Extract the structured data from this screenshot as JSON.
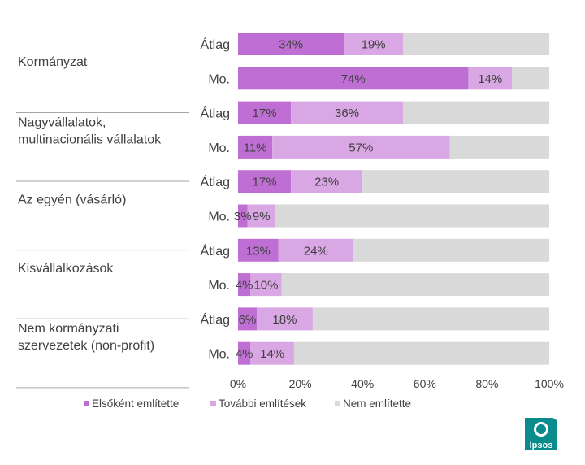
{
  "chart_data": {
    "type": "bar",
    "orientation": "horizontal",
    "stacked": true,
    "groups": [
      {
        "label": "Kormányzat",
        "rows": [
          "Átlag",
          "Mo."
        ]
      },
      {
        "label": "Nagyvállalatok, multinacionális vállalatok",
        "rows": [
          "Átlag",
          "Mo."
        ]
      },
      {
        "label": "Az egyén (vásárló)",
        "rows": [
          "Átlag",
          "Mo."
        ]
      },
      {
        "label": "Kisvállalkozások",
        "rows": [
          "Átlag",
          "Mo."
        ]
      },
      {
        "label": "Nem kormányzati szervezetek (non-profit)",
        "rows": [
          "Átlag",
          "Mo."
        ]
      }
    ],
    "group_label_lines": [
      [
        "Kormányzat"
      ],
      [
        "Nagyvállalatok,",
        "multinacionális vállalatok"
      ],
      [
        "Az egyén (vásárló)"
      ],
      [
        "Kisvállalkozások"
      ],
      [
        "Nem kormányzati",
        "szervezetek (non-profit)"
      ]
    ],
    "categories": [
      "Átlag",
      "Mo.",
      "Átlag",
      "Mo.",
      "Átlag",
      "Mo.",
      "Átlag",
      "Mo.",
      "Átlag",
      "Mo."
    ],
    "series": [
      {
        "name": "Elsőként említette",
        "color": "#bf6fd4",
        "values": [
          34,
          74,
          17,
          11,
          17,
          3,
          13,
          4,
          6,
          4
        ],
        "labels": [
          "34%",
          "74%",
          "17%",
          "11%",
          "17%",
          "3%",
          "13%",
          "4%",
          "6%",
          "4%"
        ]
      },
      {
        "name": "További említések",
        "color": "#d9a7e3",
        "values": [
          19,
          14,
          36,
          57,
          23,
          9,
          24,
          10,
          18,
          14
        ],
        "labels": [
          "19%",
          "14%",
          "36%",
          "57%",
          "23%",
          "9%",
          "24%",
          "10%",
          "18%",
          "14%"
        ]
      },
      {
        "name": "Nem említette",
        "color": "#d9d9d9",
        "values": [
          47,
          12,
          47,
          32,
          60,
          88,
          63,
          86,
          76,
          82
        ],
        "labels": []
      }
    ],
    "xlim": [
      0,
      100
    ],
    "xticks": [
      0,
      20,
      40,
      60,
      80,
      100
    ],
    "xtick_labels": [
      "0%",
      "20%",
      "40%",
      "60%",
      "80%",
      "100%"
    ],
    "grid": false,
    "legend": "bottom-left"
  },
  "logo": {
    "text": "Ipsos",
    "color": "#008b8b"
  }
}
